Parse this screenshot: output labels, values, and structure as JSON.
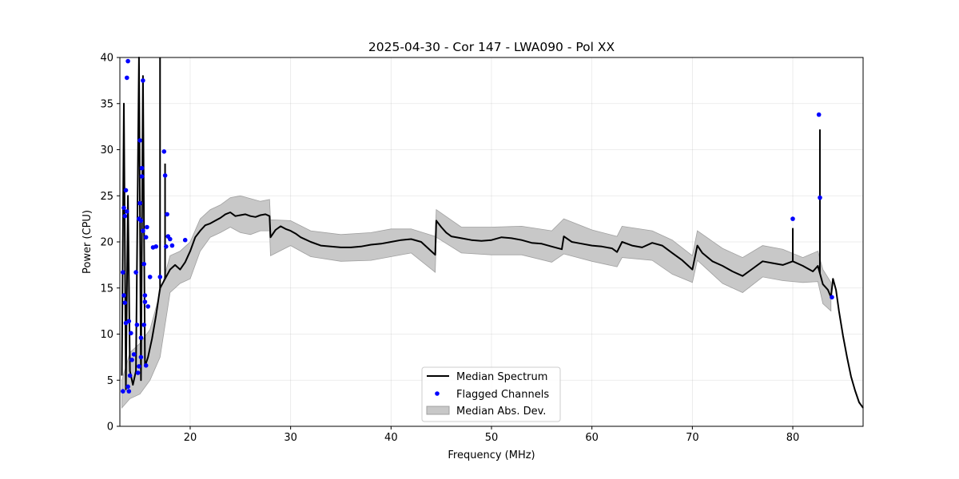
{
  "chart_data": {
    "type": "line",
    "title": "2025-04-30 - Cor 147 - LWA090 - Pol XX",
    "xlabel": "Frequency (MHz)",
    "ylabel": "Power (CPU)",
    "xlim": [
      13,
      87
    ],
    "ylim": [
      0,
      40
    ],
    "xticks": [
      20,
      30,
      40,
      50,
      60,
      70,
      80
    ],
    "yticks": [
      0,
      5,
      10,
      15,
      20,
      25,
      30,
      35,
      40
    ],
    "grid": true,
    "legend_position": "lower-center",
    "colors": {
      "median": "#000000",
      "flagged": "#0000ff",
      "mad": "#c8c8c8",
      "mad_edge": "#a0a0a0"
    },
    "series": [
      {
        "name": "Median Spectrum",
        "kind": "line",
        "x": [
          13.2,
          13.4,
          13.6,
          13.8,
          14.0,
          14.3,
          14.6,
          14.9,
          15.1,
          15.3,
          15.5,
          15.8,
          16.2,
          16.6,
          17.0,
          17.5,
          18.0,
          18.5,
          19.0,
          19.5,
          20.0,
          20.5,
          21.0,
          21.5,
          22.0,
          22.5,
          23.0,
          23.5,
          24.0,
          24.5,
          25.0,
          25.5,
          26.0,
          26.5,
          27.0,
          27.5,
          27.9,
          28.0,
          28.5,
          29.0,
          29.5,
          30.0,
          30.5,
          31.0,
          32.0,
          33.0,
          34.0,
          35.0,
          36.0,
          37.0,
          38.0,
          39.0,
          40.0,
          41.0,
          42.0,
          43.0,
          44.0,
          44.4,
          44.5,
          45.0,
          45.5,
          46.0,
          47.0,
          48.0,
          49.0,
          50.0,
          51.0,
          52.0,
          53.0,
          54.0,
          55.0,
          56.0,
          57.0,
          57.2,
          58.0,
          59.0,
          60.0,
          61.0,
          62.0,
          62.5,
          63.0,
          64.0,
          65.0,
          66.0,
          67.0,
          68.0,
          69.0,
          70.0,
          70.5,
          71.0,
          72.0,
          73.0,
          74.0,
          75.0,
          76.0,
          77.0,
          78.0,
          79.0,
          80.0,
          81.0,
          82.0,
          82.5,
          83.0,
          83.5,
          83.8,
          84.0,
          84.3,
          84.6,
          85.0,
          85.4,
          85.8,
          86.2,
          86.6,
          87.0
        ],
        "y": [
          5.5,
          35.0,
          4.0,
          25.0,
          6.0,
          4.5,
          6.0,
          40.0,
          5.0,
          38.0,
          6.5,
          7.5,
          9.5,
          12.0,
          15.0,
          16.0,
          17.0,
          17.5,
          17.0,
          17.8,
          19.0,
          20.5,
          21.2,
          21.8,
          22.0,
          22.3,
          22.6,
          23.0,
          23.2,
          22.8,
          22.9,
          23.0,
          22.8,
          22.7,
          22.9,
          23.0,
          22.8,
          20.5,
          21.3,
          21.7,
          21.4,
          21.2,
          20.9,
          20.5,
          20.0,
          19.6,
          19.5,
          19.4,
          19.4,
          19.5,
          19.7,
          19.8,
          20.0,
          20.2,
          20.3,
          20.0,
          19.0,
          18.6,
          22.3,
          21.6,
          21.0,
          20.6,
          20.4,
          20.2,
          20.1,
          20.2,
          20.5,
          20.4,
          20.2,
          19.9,
          19.8,
          19.5,
          19.2,
          20.6,
          20.0,
          19.8,
          19.6,
          19.5,
          19.3,
          18.9,
          20.0,
          19.6,
          19.4,
          19.9,
          19.6,
          18.8,
          18.0,
          17.0,
          19.6,
          18.8,
          17.9,
          17.4,
          16.8,
          16.3,
          17.1,
          17.9,
          17.7,
          17.5,
          17.9,
          17.4,
          16.8,
          17.4,
          15.4,
          14.8,
          14.0,
          16.0,
          14.8,
          12.5,
          9.8,
          7.5,
          5.4,
          3.9,
          2.6,
          2.0
        ],
        "spikes": [
          {
            "x": 17.0,
            "y": 40.0
          },
          {
            "x": 17.5,
            "y": 28.5
          },
          {
            "x": 80.0,
            "y": 21.5
          },
          {
            "x": 82.7,
            "y": 32.2
          }
        ]
      },
      {
        "name": "Flagged Channels",
        "kind": "scatter",
        "x": [
          13.3,
          13.3,
          13.4,
          13.4,
          13.5,
          13.5,
          13.6,
          13.6,
          13.7,
          13.7,
          13.8,
          13.8,
          13.9,
          13.9,
          14.0,
          14.1,
          14.2,
          14.4,
          14.6,
          14.7,
          14.8,
          14.9,
          14.9,
          15.0,
          15.0,
          15.1,
          15.1,
          15.1,
          15.2,
          15.2,
          15.3,
          15.3,
          15.4,
          15.4,
          15.5,
          15.5,
          15.6,
          15.6,
          15.7,
          15.8,
          16.0,
          16.3,
          16.6,
          17.0,
          17.4,
          17.5,
          17.6,
          17.7,
          17.8,
          18.0,
          18.2,
          19.5,
          80.0,
          82.6,
          82.7,
          83.9
        ],
        "y": [
          3.8,
          16.7,
          14.2,
          23.7,
          13.4,
          22.8,
          11.2,
          25.6,
          37.8,
          23.3,
          39.6,
          4.3,
          11.4,
          3.8,
          5.5,
          10.1,
          7.2,
          7.8,
          16.7,
          11.0,
          5.8,
          6.5,
          22.5,
          31.0,
          24.2,
          7.5,
          22.3,
          9.6,
          28.0,
          27.1,
          37.5,
          21.2,
          17.6,
          11.0,
          14.2,
          13.5,
          20.5,
          6.6,
          21.6,
          13.0,
          16.2,
          19.4,
          19.5,
          16.2,
          29.8,
          27.2,
          19.5,
          23.0,
          20.6,
          20.3,
          19.6,
          20.2,
          22.5,
          33.8,
          24.8,
          14.0
        ]
      },
      {
        "name": "Median Abs. Dev.",
        "kind": "band",
        "x": [
          13.2,
          14.0,
          15.0,
          16.0,
          17.0,
          18.0,
          19.0,
          20.0,
          21.0,
          22.0,
          23.0,
          24.0,
          25.0,
          26.0,
          27.0,
          27.9,
          28.0,
          30.0,
          32.0,
          35.0,
          38.0,
          40.0,
          42.0,
          44.4,
          44.5,
          47.0,
          50.0,
          53.0,
          56.0,
          57.2,
          60.0,
          62.5,
          63.0,
          66.0,
          68.0,
          70.0,
          70.5,
          73.0,
          75.0,
          77.0,
          79.0,
          81.0,
          82.5,
          83.0,
          83.8
        ],
        "upper": [
          5.0,
          8.0,
          9.0,
          10.5,
          14.5,
          18.5,
          19.0,
          20.0,
          22.5,
          23.5,
          24.0,
          24.8,
          25.0,
          24.7,
          24.4,
          24.6,
          22.4,
          22.3,
          21.2,
          20.8,
          21.0,
          21.4,
          21.4,
          20.6,
          23.5,
          21.6,
          21.6,
          21.7,
          21.2,
          22.5,
          21.3,
          20.6,
          21.7,
          21.2,
          20.2,
          18.5,
          21.2,
          19.3,
          18.3,
          19.6,
          19.2,
          18.3,
          19.0,
          17.0,
          15.6
        ],
        "lower": [
          2.0,
          3.0,
          3.5,
          5.0,
          7.5,
          14.5,
          15.5,
          16.0,
          19.0,
          20.5,
          21.0,
          21.6,
          21.0,
          20.8,
          21.2,
          21.2,
          18.5,
          19.6,
          18.4,
          17.9,
          18.0,
          18.4,
          18.8,
          16.7,
          20.5,
          18.8,
          18.6,
          18.6,
          17.8,
          18.7,
          17.9,
          17.3,
          18.3,
          18.0,
          16.5,
          15.6,
          18.0,
          15.5,
          14.5,
          16.2,
          15.8,
          15.6,
          15.7,
          13.3,
          12.5
        ]
      }
    ]
  }
}
